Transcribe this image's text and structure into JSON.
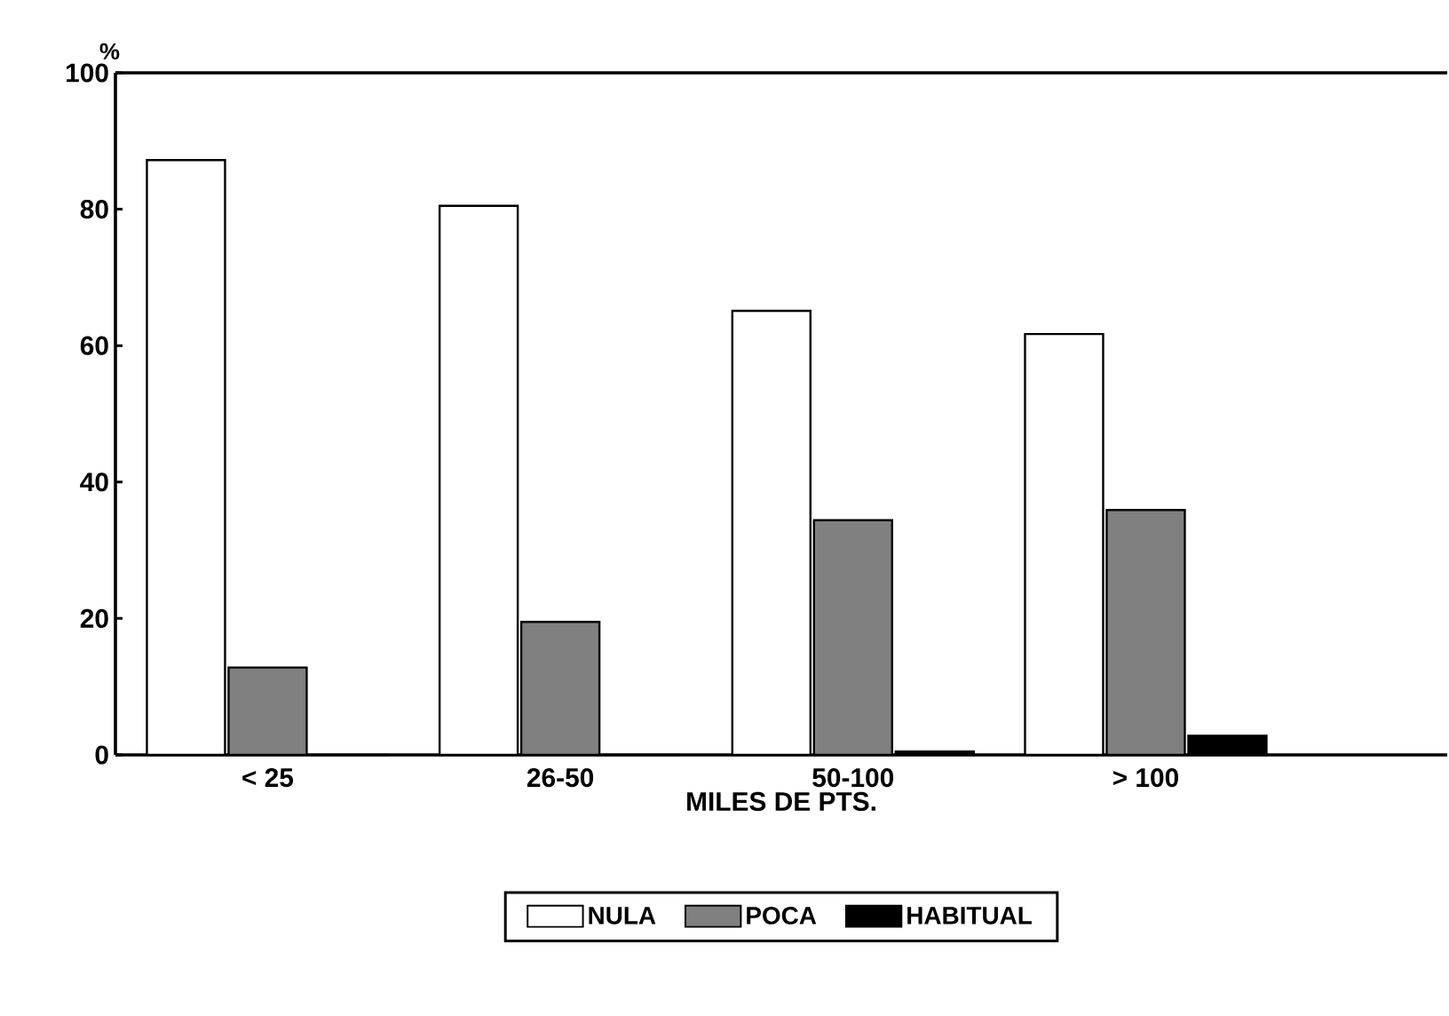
{
  "chart_data": {
    "type": "bar",
    "ylabel": "%",
    "xlabel": "MILES DE PTS.",
    "categories": [
      "< 25",
      "26-50",
      "50-100",
      "> 100"
    ],
    "series": [
      {
        "name": "NULA",
        "color": "#ffffff",
        "values": [
          87.2,
          80.5,
          65.1,
          61.7
        ]
      },
      {
        "name": "POCA",
        "color": "#808080",
        "values": [
          12.8,
          19.5,
          34.4,
          35.9
        ]
      },
      {
        "name": "HABITUAL",
        "color": "#000000",
        "values": [
          0,
          0,
          0.5,
          2.8
        ]
      }
    ],
    "ylim": [
      0,
      100
    ],
    "yticks": [
      0,
      20,
      40,
      60,
      80,
      100
    ],
    "legend": "bottom",
    "grid": false
  }
}
